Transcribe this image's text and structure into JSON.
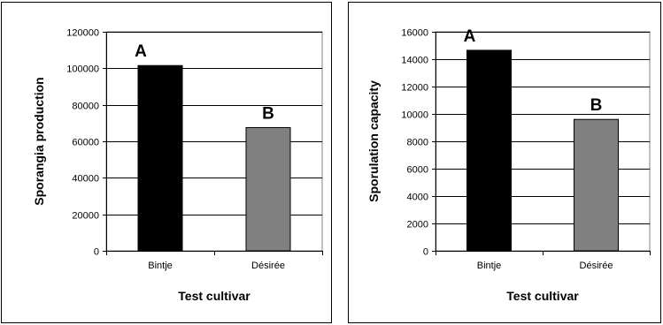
{
  "chart_data": [
    {
      "type": "bar",
      "title": "",
      "xlabel": "Test cultivar",
      "ylabel": "Sporangia production",
      "ylim": [
        0,
        120000
      ],
      "yticks": [
        0,
        20000,
        40000,
        60000,
        80000,
        100000,
        120000
      ],
      "categories": [
        "Bintje",
        "Désirée"
      ],
      "values": [
        101500,
        67500
      ],
      "bar_labels": [
        "A",
        "B"
      ],
      "bar_colors": [
        "#000000",
        "#808080"
      ],
      "grid": true
    },
    {
      "type": "bar",
      "title": "",
      "xlabel": "Test cultivar",
      "ylabel": "Sporulation capacity",
      "ylim": [
        0,
        16000
      ],
      "yticks": [
        0,
        2000,
        4000,
        6000,
        8000,
        10000,
        12000,
        14000,
        16000
      ],
      "categories": [
        "Bintje",
        "Désirée"
      ],
      "values": [
        14650,
        9600
      ],
      "bar_labels": [
        "A",
        "B"
      ],
      "bar_colors": [
        "#000000",
        "#808080"
      ],
      "grid": true
    }
  ]
}
